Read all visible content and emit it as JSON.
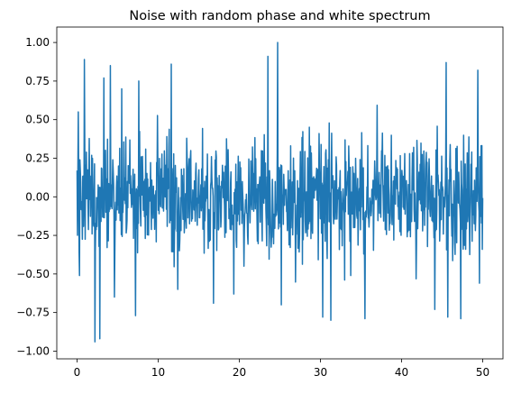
{
  "chart_data": {
    "type": "line",
    "title": "Noise with random phase and white spectrum",
    "xlabel": "",
    "ylabel": "",
    "xlim": [
      -2.5,
      52.5
    ],
    "ylim": [
      -1.05,
      1.1
    ],
    "x_ticks": [
      0,
      10,
      20,
      30,
      40,
      50
    ],
    "x_tick_labels": [
      "0",
      "10",
      "20",
      "30",
      "40",
      "50"
    ],
    "y_ticks": [
      -1.0,
      -0.75,
      -0.5,
      -0.25,
      0.0,
      0.25,
      0.5,
      0.75,
      1.0
    ],
    "y_tick_labels": [
      "−1.00",
      "−0.75",
      "−0.50",
      "−0.25",
      "0.00",
      "0.25",
      "0.50",
      "0.75",
      "1.00"
    ],
    "grid": false,
    "legend": "none",
    "series": [
      {
        "color": "#1f77b4",
        "x_start": 0,
        "x_end": 50,
        "sample_count": 1000,
        "typical_range": [
          -0.42,
          0.42
        ],
        "max": 1.0,
        "min": -0.94,
        "peaks": [
          {
            "x": 0.15,
            "y": 0.55
          },
          {
            "x": 0.3,
            "y": -0.51
          },
          {
            "x": 0.9,
            "y": 0.89
          },
          {
            "x": 2.2,
            "y": -0.94
          },
          {
            "x": 2.8,
            "y": -0.92
          },
          {
            "x": 3.3,
            "y": 0.77
          },
          {
            "x": 4.1,
            "y": 0.85
          },
          {
            "x": 4.6,
            "y": -0.65
          },
          {
            "x": 5.5,
            "y": 0.7
          },
          {
            "x": 7.2,
            "y": -0.77
          },
          {
            "x": 7.6,
            "y": 0.75
          },
          {
            "x": 11.6,
            "y": 0.86
          },
          {
            "x": 12.4,
            "y": -0.6
          },
          {
            "x": 16.8,
            "y": -0.69
          },
          {
            "x": 19.3,
            "y": -0.63
          },
          {
            "x": 23.5,
            "y": 0.91
          },
          {
            "x": 24.7,
            "y": 1.0
          },
          {
            "x": 25.2,
            "y": -0.7
          },
          {
            "x": 30.3,
            "y": -0.78
          },
          {
            "x": 31.3,
            "y": -0.8
          },
          {
            "x": 35.5,
            "y": -0.79
          },
          {
            "x": 44.1,
            "y": -0.73
          },
          {
            "x": 45.5,
            "y": 0.87
          },
          {
            "x": 45.7,
            "y": -0.78
          },
          {
            "x": 47.3,
            "y": -0.79
          },
          {
            "x": 49.4,
            "y": 0.82
          },
          {
            "x": 49.6,
            "y": -0.56
          }
        ]
      }
    ]
  }
}
